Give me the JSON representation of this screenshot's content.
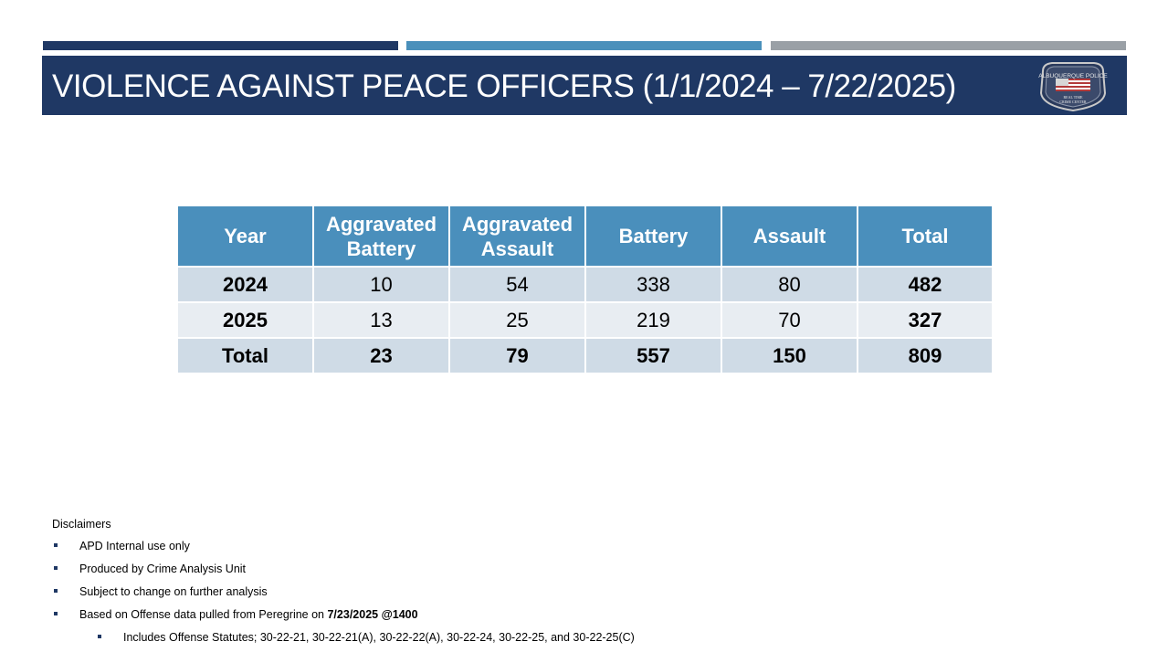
{
  "slide": {
    "title": "VIOLENCE AGAINST PEACE OFFICERS (1/1/2024 – 7/22/2025)",
    "badge_icon": "albuquerque-police-badge-icon",
    "badge_text_top": "ALBUQUERQUE POLICE",
    "badge_text_bottom1": "REAL TIME",
    "badge_text_bottom2": "CRIME CENTER",
    "colors": {
      "navy": "#1f3864",
      "blue": "#4a90bb",
      "gray": "#9aa0a6"
    }
  },
  "table": {
    "headers": [
      "Year",
      "Aggravated Battery",
      "Aggravated Assault",
      "Battery",
      "Assault",
      "Total"
    ],
    "rows": [
      {
        "year": "2024",
        "agg_battery": "10",
        "agg_assault": "54",
        "battery": "338",
        "assault": "80",
        "total": "482"
      },
      {
        "year": "2025",
        "agg_battery": "13",
        "agg_assault": "25",
        "battery": "219",
        "assault": "70",
        "total": "327"
      },
      {
        "year": "Total",
        "agg_battery": "23",
        "agg_assault": "79",
        "battery": "557",
        "assault": "150",
        "total": "809"
      }
    ]
  },
  "disclaimers": {
    "heading": "Disclaimers",
    "items": [
      "APD Internal use only",
      "Produced by Crime Analysis Unit",
      "Subject to change on further analysis",
      "Based on Offense data pulled from Peregrine on "
    ],
    "pulled_timestamp": "7/23/2025 @1400",
    "sub_item": "Includes Offense Statutes; 30-22-21, 30-22-21(A), 30-22-22(A), 30-22-24, 30-22-25, and 30-22-25(C)"
  }
}
